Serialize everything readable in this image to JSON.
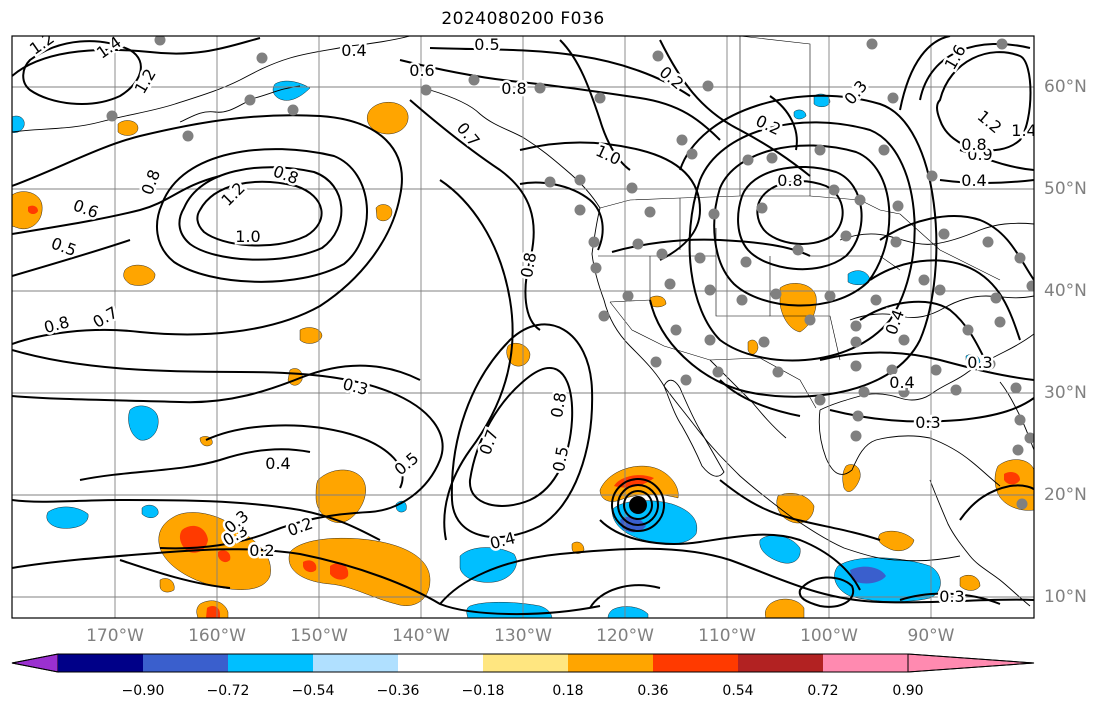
{
  "title": "2024080200 F036",
  "lon_labels": [
    "170°W",
    "160°W",
    "150°W",
    "140°W",
    "130°W",
    "120°W",
    "110°W",
    "100°W",
    "90°W"
  ],
  "lat_labels": [
    "60°N",
    "50°N",
    "40°N",
    "30°N",
    "20°N",
    "10°N"
  ],
  "contour_labels": [
    "1.2",
    "1.4",
    "1.2",
    "0.4",
    "0.5",
    "0.6",
    "0.8",
    "0.2",
    "0.3",
    "1.6",
    "1.2",
    "1.4",
    "0.9",
    "0.8",
    "0.7",
    "1.0",
    "0.2",
    "0.8",
    "0.4",
    "0.8",
    "1.2",
    "1.0",
    "0.8",
    "0.6",
    "0.5",
    "0.8",
    "0.7",
    "0.8",
    "0.3",
    "0.4",
    "0.5",
    "0.7",
    "0.5",
    "0.8",
    "0.4",
    "0.3",
    "0.2",
    "0.3",
    "0.2",
    "0.4",
    "0.3",
    "0.3",
    "0.4",
    "0.3"
  ],
  "colorbar": {
    "tick_labels": [
      "−0.90",
      "−0.72",
      "−0.54",
      "−0.36",
      "−0.18",
      "0.18",
      "0.36",
      "0.54",
      "0.72",
      "0.90"
    ],
    "colors": [
      "#9b30d0",
      "#000088",
      "#3a5fcd",
      "#00bfff",
      "#b0e0ff",
      "#ffffff",
      "#ffe680",
      "#ffa500",
      "#ff3a00",
      "#b22222",
      "#ff8ab0"
    ]
  },
  "colors": {
    "contour": "#000000",
    "grid": "#808080",
    "station": "#808080"
  }
}
